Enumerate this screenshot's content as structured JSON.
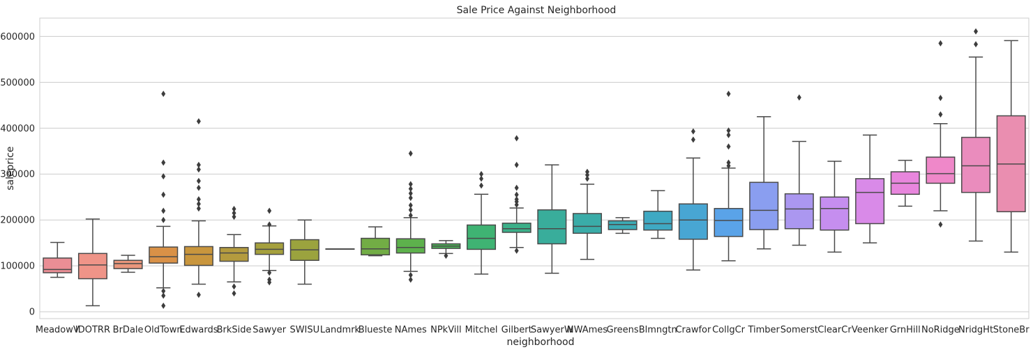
{
  "chart_data": {
    "type": "box",
    "title": "Sale Price Against Neighborhood",
    "xlabel": "neighborhood",
    "ylabel": "saleprice",
    "ylim": [
      -15000,
      640000
    ],
    "yticks": [
      0,
      100000,
      200000,
      300000,
      400000,
      500000,
      600000
    ],
    "grid": "horizontal",
    "categories": [
      "MeadowV",
      "IDOTRR",
      "BrDale",
      "OldTown",
      "Edwards",
      "BrkSide",
      "Sawyer",
      "SWISU",
      "Landmrk",
      "Blueste",
      "NAmes",
      "NPkVill",
      "Mitchel",
      "Gilbert",
      "SawyerW",
      "NWAmes",
      "Greens",
      "Blmngtn",
      "Crawfor",
      "CollgCr",
      "Timber",
      "Somerst",
      "ClearCr",
      "Veenker",
      "GrnHill",
      "NoRidge",
      "NridgHt",
      "StoneBr"
    ],
    "colors": [
      "#ea8e95",
      "#ef9488",
      "#e9967c",
      "#d99147",
      "#c9963d",
      "#b49b3e",
      "#a5a03d",
      "#9ba33e",
      "#8ca83e",
      "#72ad45",
      "#5db14c",
      "#4cb256",
      "#3fb373",
      "#3bb089",
      "#39ad9b",
      "#3aaca8",
      "#3cabb5",
      "#3fa9c3",
      "#48a6d3",
      "#5aa3e8",
      "#8a9ef0",
      "#ab97f0",
      "#c58eef",
      "#d98ae8",
      "#e886dd",
      "#ef88c9",
      "#ea8cbd",
      "#ea8eb0"
    ],
    "boxes": [
      {
        "whislo": 75000,
        "q1": 85000,
        "med": 92000,
        "q3": 117000,
        "whishi": 151000,
        "fliers": []
      },
      {
        "whislo": 13000,
        "q1": 72000,
        "med": 102000,
        "q3": 127000,
        "whishi": 202000,
        "fliers": []
      },
      {
        "whislo": 86000,
        "q1": 94000,
        "med": 105000,
        "q3": 112000,
        "whishi": 123000,
        "fliers": []
      },
      {
        "whislo": 52000,
        "q1": 106000,
        "med": 120000,
        "q3": 141000,
        "whishi": 186000,
        "fliers": [
          475000,
          325000,
          295000,
          255000,
          220000,
          200000,
          45000,
          35000,
          13000
        ]
      },
      {
        "whislo": 60000,
        "q1": 101000,
        "med": 125000,
        "q3": 142000,
        "whishi": 198000,
        "fliers": [
          415000,
          320000,
          310000,
          285000,
          270000,
          245000,
          235000,
          225000,
          37000
        ]
      },
      {
        "whislo": 65000,
        "q1": 110000,
        "med": 128000,
        "q3": 140000,
        "whishi": 168000,
        "fliers": [
          224000,
          215000,
          207000,
          55000,
          40000
        ]
      },
      {
        "whislo": 90000,
        "q1": 125000,
        "med": 136000,
        "q3": 150000,
        "whishi": 187000,
        "fliers": [
          220000,
          190000,
          85000,
          70000,
          64000
        ]
      },
      {
        "whislo": 60000,
        "q1": 112000,
        "med": 135000,
        "q3": 157000,
        "whishi": 200000,
        "fliers": []
      },
      {
        "whislo": 137000,
        "q1": 137000,
        "med": 137000,
        "q3": 137000,
        "whishi": 137000,
        "fliers": []
      },
      {
        "whislo": 122000,
        "q1": 124000,
        "med": 137000,
        "q3": 160000,
        "whishi": 185000,
        "fliers": []
      },
      {
        "whislo": 88000,
        "q1": 128000,
        "med": 140000,
        "q3": 159000,
        "whishi": 205000,
        "fliers": [
          345000,
          278000,
          268000,
          258000,
          248000,
          232000,
          222000,
          210000,
          80000,
          70000
        ]
      },
      {
        "whislo": 127000,
        "q1": 138000,
        "med": 143000,
        "q3": 148000,
        "whishi": 155000,
        "fliers": [
          122000
        ]
      },
      {
        "whislo": 82000,
        "q1": 136000,
        "med": 160000,
        "q3": 189000,
        "whishi": 256000,
        "fliers": [
          300000,
          290000,
          275000
        ]
      },
      {
        "whislo": 140000,
        "q1": 173000,
        "med": 181000,
        "q3": 193000,
        "whishi": 226000,
        "fliers": [
          378000,
          320000,
          270000,
          255000,
          245000,
          240000,
          233000,
          133000
        ]
      },
      {
        "whislo": 84000,
        "q1": 148000,
        "med": 181000,
        "q3": 222000,
        "whishi": 320000,
        "fliers": []
      },
      {
        "whislo": 114000,
        "q1": 171000,
        "med": 186000,
        "q3": 214000,
        "whishi": 278000,
        "fliers": [
          305000,
          298000,
          290000
        ]
      },
      {
        "whislo": 171000,
        "q1": 179000,
        "med": 190000,
        "q3": 198000,
        "whishi": 205000,
        "fliers": []
      },
      {
        "whislo": 160000,
        "q1": 178000,
        "med": 192000,
        "q3": 219000,
        "whishi": 264000,
        "fliers": []
      },
      {
        "whislo": 91000,
        "q1": 158000,
        "med": 200000,
        "q3": 235000,
        "whishi": 335000,
        "fliers": [
          393000,
          375000
        ]
      },
      {
        "whislo": 111000,
        "q1": 164000,
        "med": 199000,
        "q3": 225000,
        "whishi": 313000,
        "fliers": [
          475000,
          395000,
          385000,
          360000,
          325000,
          318000
        ]
      },
      {
        "whislo": 137000,
        "q1": 179000,
        "med": 221000,
        "q3": 282000,
        "whishi": 425000,
        "fliers": []
      },
      {
        "whislo": 145000,
        "q1": 181000,
        "med": 224000,
        "q3": 257000,
        "whishi": 371000,
        "fliers": [
          467000
        ]
      },
      {
        "whislo": 130000,
        "q1": 178000,
        "med": 225000,
        "q3": 250000,
        "whishi": 328000,
        "fliers": []
      },
      {
        "whislo": 150000,
        "q1": 192000,
        "med": 260000,
        "q3": 290000,
        "whishi": 385000,
        "fliers": []
      },
      {
        "whislo": 230000,
        "q1": 256000,
        "med": 280000,
        "q3": 305000,
        "whishi": 330000,
        "fliers": []
      },
      {
        "whislo": 220000,
        "q1": 280000,
        "med": 301000,
        "q3": 337000,
        "whishi": 410000,
        "fliers": [
          585000,
          466000,
          430000,
          190000
        ]
      },
      {
        "whislo": 154000,
        "q1": 260000,
        "med": 318000,
        "q3": 380000,
        "whishi": 555000,
        "fliers": [
          611000,
          583000
        ]
      },
      {
        "whislo": 130000,
        "q1": 218000,
        "med": 322000,
        "q3": 427000,
        "whishi": 591000,
        "fliers": []
      }
    ]
  }
}
